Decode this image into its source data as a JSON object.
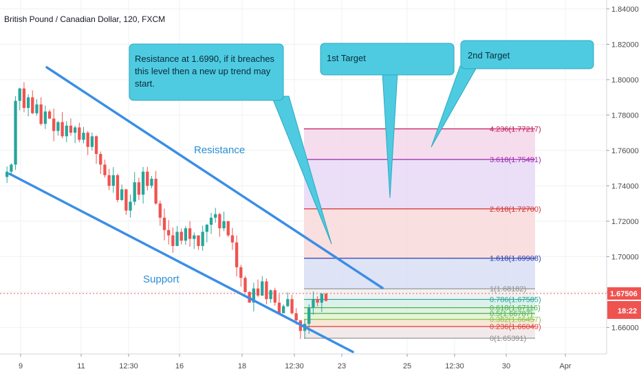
{
  "header": {
    "title": "British Pound / Canadian Dollar, 120, FXCM"
  },
  "colors": {
    "up": "#26a69a",
    "down": "#ef5350",
    "channel": "#3a8ee6",
    "callout_fill": "#4ecbe0",
    "callout_stroke": "#2aa9c2",
    "price_tag": "#ef5350",
    "timer_tag": "#2f3a48"
  },
  "chart_data": {
    "type": "candlestick",
    "symbol": "British Pound / Canadian Dollar",
    "interval": "120",
    "source": "FXCM",
    "current_price": "1.67506",
    "countdown": "18:22",
    "x_ticks": [
      "9",
      "11",
      "12:30",
      "16",
      "18",
      "12:30",
      "23",
      "25",
      "12:30",
      "30",
      "Apr"
    ],
    "y_ticks": [
      "1.84000",
      "1.82000",
      "1.80000",
      "1.78000",
      "1.76000",
      "1.74000",
      "1.72000",
      "1.70000",
      "1.68000",
      "1.66000"
    ],
    "y_range": [
      1.645,
      1.845
    ],
    "fib_levels": [
      {
        "label": "4.236(1.77217)",
        "ratio": 4.236,
        "price": 1.77217,
        "color": "#c2185b",
        "fill": "#f5d7ea"
      },
      {
        "label": "3.618(1.75491)",
        "ratio": 3.618,
        "price": 1.75491,
        "color": "#9c27b0",
        "fill": "#e6d9f6"
      },
      {
        "label": "2.618(1.72700)",
        "ratio": 2.618,
        "price": 1.727,
        "color": "#d32f2f",
        "fill": "#f8d9d9"
      },
      {
        "label": "1.618(1.69908)",
        "ratio": 1.618,
        "price": 1.69908,
        "color": "#2a3fb0",
        "fill": "#d9def5"
      },
      {
        "label": "1(1.68182)",
        "ratio": 1,
        "price": 1.68182,
        "color": "#8c8c8c",
        "fill": "#eeeeee"
      },
      {
        "label": "0.786(1.67585)",
        "ratio": 0.786,
        "price": 1.67585,
        "color": "#26a69a",
        "fill": "#d6efe9"
      },
      {
        "label": "0.618(1.67116)",
        "ratio": 0.618,
        "price": 1.67116,
        "color": "#4caf50",
        "fill": "#dcf0d8"
      },
      {
        "label": "0.5(1.66787)",
        "ratio": 0.5,
        "price": 1.66787,
        "color": "#4caf50",
        "fill": "#e2f3d4"
      },
      {
        "label": "0.382(1.66457)",
        "ratio": 0.382,
        "price": 1.66457,
        "color": "#8bc34a",
        "fill": "#f7e3cf"
      },
      {
        "label": "0.236(1.66049)",
        "ratio": 0.236,
        "price": 1.66049,
        "color": "#e53935",
        "fill": "#f0e6e6"
      },
      {
        "label": "0(1.65391)",
        "ratio": 0,
        "price": 1.65391,
        "color": "#8c8c8c",
        "fill": "none"
      }
    ],
    "annotations": {
      "resistance_label": "Resistance",
      "support_label": "Support",
      "callout_resistance": [
        "Resistance at 1.6990, if it breaches",
        "this level then a new up trend may",
        "start."
      ],
      "callout_target1": "1st Target",
      "callout_target2": "2nd Target"
    },
    "channel": {
      "resistance": {
        "start_price": 1.806,
        "end_price": 1.681
      },
      "support": {
        "start_price": 1.743,
        "end_price": 1.633
      }
    },
    "candles_note": "approximate price path",
    "price_path": [
      1.745,
      1.748,
      1.752,
      1.788,
      1.795,
      1.784,
      1.79,
      1.781,
      1.786,
      1.775,
      1.782,
      1.778,
      1.771,
      1.776,
      1.768,
      1.774,
      1.77,
      1.773,
      1.766,
      1.77,
      1.762,
      1.768,
      1.758,
      1.752,
      1.746,
      1.74,
      1.746,
      1.732,
      1.738,
      1.726,
      1.731,
      1.742,
      1.735,
      1.748,
      1.74,
      1.744,
      1.73,
      1.722,
      1.715,
      1.712,
      1.706,
      1.714,
      1.709,
      1.716,
      1.71,
      1.712,
      1.706,
      1.714,
      1.718,
      1.722,
      1.724,
      1.716,
      1.72,
      1.712,
      1.708,
      1.694,
      1.688,
      1.68,
      1.674,
      1.682,
      1.678,
      1.686,
      1.676,
      1.681,
      1.674,
      1.668,
      1.672,
      1.676,
      1.668,
      1.664,
      1.658,
      1.662,
      1.671,
      1.676,
      1.674,
      1.679,
      1.675
    ]
  }
}
